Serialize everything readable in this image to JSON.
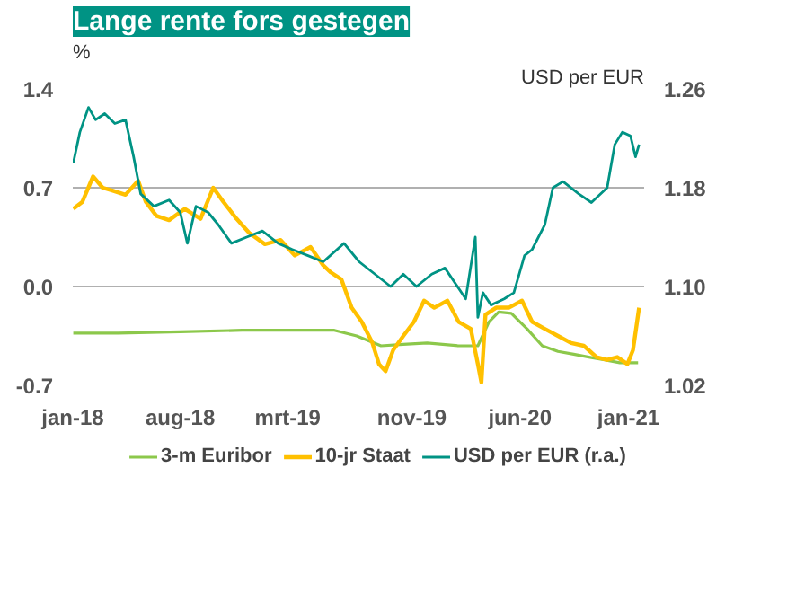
{
  "chart_data": {
    "type": "line",
    "title": "Lange rente fors gestegen",
    "ylabel": "%",
    "y2label": "USD per EUR",
    "xlim": [
      "2018-01-01",
      "2021-02-01"
    ],
    "xticks": [
      {
        "value": "2018-01-01",
        "label": "jan-18"
      },
      {
        "value": "2018-08-01",
        "label": "aug-18"
      },
      {
        "value": "2019-03-01",
        "label": "mrt-19"
      },
      {
        "value": "2019-11-01",
        "label": "nov-19"
      },
      {
        "value": "2020-06-01",
        "label": "jun-20"
      },
      {
        "value": "2021-01-01",
        "label": "jan-21"
      }
    ],
    "ylim": [
      -0.7,
      1.4
    ],
    "yticks": [
      {
        "value": 1.4,
        "label": "1.4"
      },
      {
        "value": 0.7,
        "label": "0.7"
      },
      {
        "value": 0,
        "label": "0.0"
      },
      {
        "value": -0.7,
        "label": "-0.7"
      }
    ],
    "y2lim": [
      1.02,
      1.26
    ],
    "y2ticks": [
      {
        "value": 1.26,
        "label": "1.26"
      },
      {
        "value": 1.18,
        "label": "1.18"
      },
      {
        "value": 1.1,
        "label": "1.10"
      },
      {
        "value": 1.02,
        "label": "1.02"
      }
    ],
    "grid": "y",
    "legend": "bottom",
    "series": [
      {
        "name": "3-m Euribor",
        "color": "#8cc84b",
        "x": [
          "2018-01-02",
          "2018-04-01",
          "2018-08-01",
          "2018-12-01",
          "2019-03-01",
          "2019-06-01",
          "2019-07-15",
          "2019-09-01",
          "2019-10-15",
          "2019-12-01",
          "2020-02-01",
          "2020-03-10",
          "2020-04-01",
          "2020-04-20",
          "2020-05-15",
          "2020-06-15",
          "2020-07-15",
          "2020-08-15",
          "2020-09-15",
          "2020-10-15",
          "2020-11-15",
          "2020-12-15",
          "2021-01-20"
        ],
        "values": [
          -0.33,
          -0.33,
          -0.32,
          -0.31,
          -0.31,
          -0.31,
          -0.35,
          -0.42,
          -0.41,
          -0.4,
          -0.42,
          -0.42,
          -0.25,
          -0.18,
          -0.19,
          -0.3,
          -0.42,
          -0.46,
          -0.48,
          -0.5,
          -0.52,
          -0.54,
          -0.54
        ]
      },
      {
        "name": "10-jr Staat",
        "color": "#ffc000",
        "x": [
          "2018-01-02",
          "2018-01-20",
          "2018-02-10",
          "2018-03-01",
          "2018-03-20",
          "2018-04-15",
          "2018-05-10",
          "2018-05-25",
          "2018-06-15",
          "2018-07-10",
          "2018-08-10",
          "2018-09-10",
          "2018-10-05",
          "2018-10-25",
          "2018-11-20",
          "2018-12-15",
          "2019-01-15",
          "2019-02-15",
          "2019-03-15",
          "2019-04-15",
          "2019-05-10",
          "2019-05-25",
          "2019-06-15",
          "2019-07-05",
          "2019-07-25",
          "2019-08-15",
          "2019-08-28",
          "2019-09-10",
          "2019-09-25",
          "2019-10-15",
          "2019-11-05",
          "2019-11-25",
          "2019-12-15",
          "2020-01-10",
          "2020-02-01",
          "2020-02-25",
          "2020-03-10",
          "2020-03-17",
          "2020-03-25",
          "2020-04-15",
          "2020-05-10",
          "2020-06-05",
          "2020-06-25",
          "2020-07-20",
          "2020-08-15",
          "2020-09-10",
          "2020-10-05",
          "2020-10-30",
          "2020-11-20",
          "2020-12-10",
          "2020-12-30",
          "2021-01-10",
          "2021-01-22"
        ],
        "values": [
          0.55,
          0.6,
          0.78,
          0.7,
          0.68,
          0.65,
          0.75,
          0.6,
          0.5,
          0.47,
          0.55,
          0.48,
          0.7,
          0.6,
          0.48,
          0.38,
          0.3,
          0.33,
          0.22,
          0.28,
          0.15,
          0.1,
          0.05,
          -0.15,
          -0.25,
          -0.4,
          -0.55,
          -0.6,
          -0.45,
          -0.35,
          -0.25,
          -0.1,
          -0.15,
          -0.1,
          -0.25,
          -0.3,
          -0.55,
          -0.68,
          -0.2,
          -0.15,
          -0.15,
          -0.1,
          -0.25,
          -0.3,
          -0.35,
          -0.4,
          -0.42,
          -0.5,
          -0.52,
          -0.5,
          -0.55,
          -0.45,
          -0.15
        ]
      },
      {
        "name": "USD per EUR (r.a.)",
        "color": "#009384",
        "axis": "y2",
        "x": [
          "2018-01-02",
          "2018-01-15",
          "2018-02-01",
          "2018-02-15",
          "2018-03-05",
          "2018-03-25",
          "2018-04-15",
          "2018-05-01",
          "2018-05-15",
          "2018-06-10",
          "2018-07-10",
          "2018-08-01",
          "2018-08-15",
          "2018-09-01",
          "2018-09-25",
          "2018-10-15",
          "2018-11-10",
          "2018-12-10",
          "2019-01-10",
          "2019-02-10",
          "2019-03-10",
          "2019-04-10",
          "2019-05-10",
          "2019-06-20",
          "2019-07-20",
          "2019-08-20",
          "2019-09-20",
          "2019-10-15",
          "2019-11-10",
          "2019-12-10",
          "2020-01-05",
          "2020-02-15",
          "2020-03-05",
          "2020-03-10",
          "2020-03-20",
          "2020-04-05",
          "2020-05-01",
          "2020-05-20",
          "2020-06-10",
          "2020-06-25",
          "2020-07-20",
          "2020-08-05",
          "2020-08-25",
          "2020-09-25",
          "2020-10-20",
          "2020-11-20",
          "2020-12-05",
          "2020-12-20",
          "2021-01-05",
          "2021-01-15",
          "2021-01-22"
        ],
        "values": [
          1.2,
          1.225,
          1.245,
          1.235,
          1.24,
          1.232,
          1.235,
          1.205,
          1.175,
          1.165,
          1.17,
          1.16,
          1.135,
          1.165,
          1.16,
          1.15,
          1.135,
          1.14,
          1.145,
          1.135,
          1.13,
          1.125,
          1.12,
          1.135,
          1.12,
          1.11,
          1.1,
          1.11,
          1.1,
          1.11,
          1.115,
          1.09,
          1.14,
          1.075,
          1.095,
          1.085,
          1.09,
          1.095,
          1.125,
          1.13,
          1.15,
          1.18,
          1.185,
          1.175,
          1.168,
          1.18,
          1.215,
          1.225,
          1.222,
          1.205,
          1.215
        ]
      }
    ]
  }
}
